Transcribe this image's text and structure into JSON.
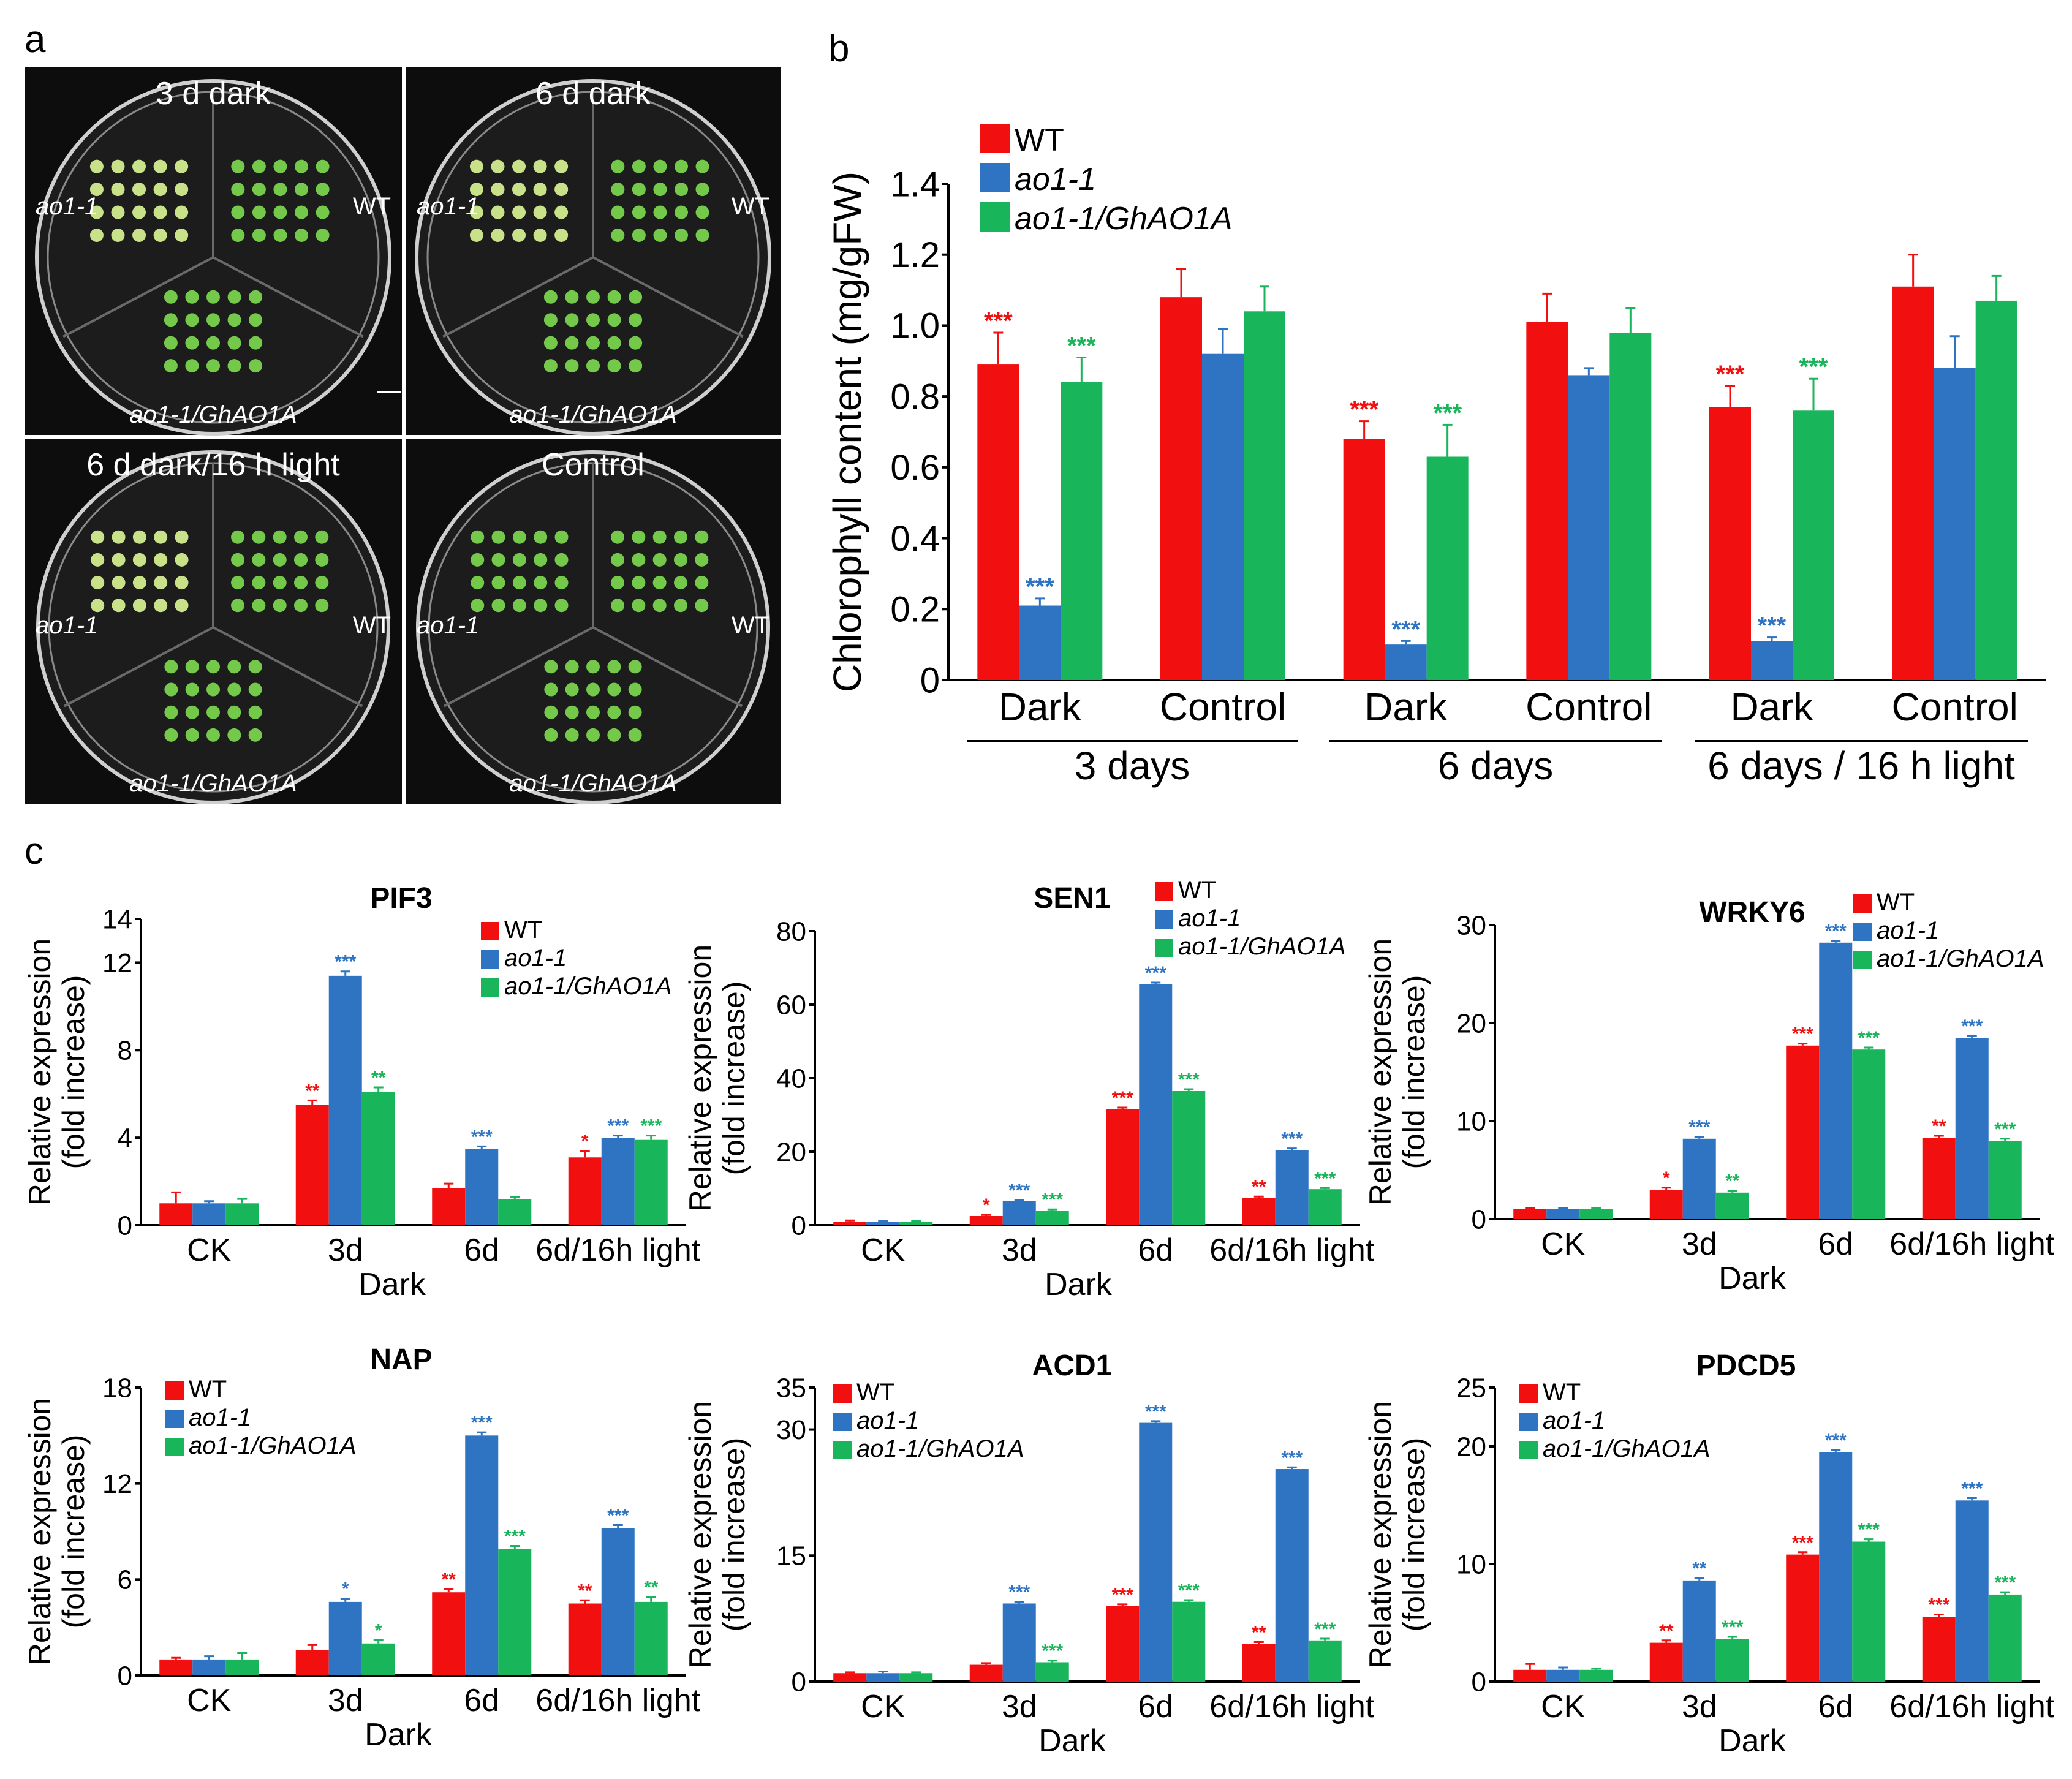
{
  "colors": {
    "wt": "#f20f0f",
    "mut": "#2f74c2",
    "comp": "#19b55a",
    "plate_bg": "#0d0d0d"
  },
  "panel_labels": {
    "a": "a",
    "b": "b",
    "c": "c"
  },
  "photos": {
    "plates": [
      {
        "title": "3 d dark",
        "left_label": "ao1-1",
        "right_label": "WT",
        "bottom_label": "ao1-1/GhAO1A"
      },
      {
        "title": "6 d dark",
        "left_label": "ao1-1",
        "right_label": "WT",
        "bottom_label": "ao1-1/GhAO1A"
      },
      {
        "title": "6 d dark/16 h light",
        "left_label": "ao1-1",
        "right_label": "WT",
        "bottom_label": "ao1-1/GhAO1A"
      },
      {
        "title": "Control",
        "left_label": "ao1-1",
        "right_label": "WT",
        "bottom_label": "ao1-1/GhAO1A"
      }
    ]
  },
  "legend": {
    "wt": "WT",
    "mut": "ao1-1",
    "comp": "ao1-1/GhAO1A"
  },
  "chart_data": [
    {
      "id": "b",
      "type": "bar",
      "title": "",
      "ylabel": "Chlorophyll content (mg/gFW)",
      "ylim": [
        0,
        1.4
      ],
      "yticks": [
        0,
        0.2,
        0.4,
        0.6,
        0.8,
        1.0,
        1.2,
        1.4
      ],
      "ytick_labels": [
        "0",
        "0.2",
        "0.4",
        "0.6",
        "0.8",
        "1.0",
        "1.2",
        "1.4"
      ],
      "categories": [
        "Dark",
        "Control",
        "Dark",
        "Control",
        "Dark",
        "Control"
      ],
      "groups": [
        "3 days",
        "6 days",
        "6 days / 16 h light"
      ],
      "series": [
        {
          "name": "WT",
          "values": [
            0.89,
            1.08,
            0.68,
            1.01,
            0.77,
            1.11
          ],
          "errors": [
            0.09,
            0.08,
            0.05,
            0.08,
            0.06,
            0.09
          ],
          "sig": [
            "***",
            "",
            "***",
            "",
            "***",
            ""
          ]
        },
        {
          "name": "ao1-1",
          "values": [
            0.21,
            0.92,
            0.1,
            0.86,
            0.11,
            0.88
          ],
          "errors": [
            0.02,
            0.07,
            0.01,
            0.02,
            0.01,
            0.09
          ],
          "sig": [
            "***",
            "",
            "***",
            "",
            "***",
            ""
          ]
        },
        {
          "name": "ao1-1/GhAO1A",
          "values": [
            0.84,
            1.04,
            0.63,
            0.98,
            0.76,
            1.07
          ],
          "errors": [
            0.07,
            0.07,
            0.09,
            0.07,
            0.09,
            0.07
          ],
          "sig": [
            "***",
            "",
            "***",
            "",
            "***",
            ""
          ]
        }
      ]
    },
    {
      "id": "c1",
      "type": "bar",
      "title": "PIF3",
      "ylabel": "Relative expression",
      "ylabel2": "(fold increase)",
      "xlabel": "Dark",
      "ylim": [
        0,
        14
      ],
      "yticks": [
        0,
        4,
        8,
        12,
        14
      ],
      "ytick_labels": [
        "0",
        "4",
        "8",
        "12",
        "14"
      ],
      "categories": [
        "CK",
        "3d",
        "6d",
        "6d/16h light"
      ],
      "series": [
        {
          "name": "WT",
          "values": [
            1.0,
            5.5,
            1.7,
            3.1
          ],
          "errors": [
            0.5,
            0.2,
            0.2,
            0.3
          ],
          "sig": [
            "",
            "**",
            "",
            "*"
          ]
        },
        {
          "name": "ao1-1",
          "values": [
            1.0,
            11.4,
            3.5,
            4.0
          ],
          "errors": [
            0.1,
            0.2,
            0.1,
            0.1
          ],
          "sig": [
            "",
            "***",
            "***",
            "***"
          ]
        },
        {
          "name": "ao1-1/GhAO1A",
          "values": [
            1.0,
            6.1,
            1.2,
            3.9
          ],
          "errors": [
            0.2,
            0.2,
            0.1,
            0.2
          ],
          "sig": [
            "",
            "**",
            "",
            "***"
          ]
        }
      ]
    },
    {
      "id": "c2",
      "type": "bar",
      "title": "SEN1",
      "ylabel": "Relative expression",
      "ylabel2": "(fold increase)",
      "xlabel": "Dark",
      "ylim": [
        0,
        80
      ],
      "yticks": [
        0,
        20,
        40,
        60,
        80
      ],
      "ytick_labels": [
        "0",
        "20",
        "40",
        "60",
        "80"
      ],
      "categories": [
        "CK",
        "3d",
        "6d",
        "6d/16h light"
      ],
      "series": [
        {
          "name": "WT",
          "values": [
            1.0,
            2.5,
            31.5,
            7.5
          ],
          "errors": [
            0.3,
            0.3,
            0.5,
            0.3
          ],
          "sig": [
            "",
            "*",
            "***",
            "**"
          ]
        },
        {
          "name": "ao1-1",
          "values": [
            1.0,
            6.5,
            65.5,
            20.5
          ],
          "errors": [
            0.2,
            0.3,
            0.5,
            0.4
          ],
          "sig": [
            "",
            "***",
            "***",
            "***"
          ]
        },
        {
          "name": "ao1-1/GhAO1A",
          "values": [
            1.0,
            4.0,
            36.5,
            9.8
          ],
          "errors": [
            0.2,
            0.3,
            0.5,
            0.3
          ],
          "sig": [
            "",
            "***",
            "***",
            "***"
          ]
        }
      ]
    },
    {
      "id": "c3",
      "type": "bar",
      "title": "WRKY6",
      "ylabel": "Relative expression",
      "ylabel2": "(fold increase)",
      "xlabel": "Dark",
      "ylim": [
        0,
        30
      ],
      "yticks": [
        0,
        10,
        20,
        30
      ],
      "ytick_labels": [
        "0",
        "10",
        "20",
        "30"
      ],
      "categories": [
        "CK",
        "3d",
        "6d",
        "6d/16h light"
      ],
      "series": [
        {
          "name": "WT",
          "values": [
            1.0,
            3.0,
            17.7,
            8.3
          ],
          "errors": [
            0.1,
            0.2,
            0.2,
            0.2
          ],
          "sig": [
            "",
            "*",
            "***",
            "**"
          ]
        },
        {
          "name": "ao1-1",
          "values": [
            1.0,
            8.2,
            28.2,
            18.5
          ],
          "errors": [
            0.1,
            0.2,
            0.2,
            0.2
          ],
          "sig": [
            "",
            "***",
            "***",
            "***"
          ]
        },
        {
          "name": "ao1-1/GhAO1A",
          "values": [
            1.0,
            2.7,
            17.3,
            8.0
          ],
          "errors": [
            0.1,
            0.2,
            0.2,
            0.2
          ],
          "sig": [
            "",
            "**",
            "***",
            "***"
          ]
        }
      ]
    },
    {
      "id": "c4",
      "type": "bar",
      "title": "NAP",
      "ylabel": "Relative expression",
      "ylabel2": "(fold increase)",
      "xlabel": "Dark",
      "ylim": [
        0,
        18
      ],
      "yticks": [
        0,
        6,
        12,
        18
      ],
      "ytick_labels": [
        "0",
        "6",
        "12",
        "18"
      ],
      "categories": [
        "CK",
        "3d",
        "6d",
        "6d/16h light"
      ],
      "series": [
        {
          "name": "WT",
          "values": [
            1.0,
            1.6,
            5.2,
            4.5
          ],
          "errors": [
            0.1,
            0.3,
            0.2,
            0.2
          ],
          "sig": [
            "",
            "",
            "**",
            "**"
          ]
        },
        {
          "name": "ao1-1",
          "values": [
            1.0,
            4.6,
            15.0,
            9.2
          ],
          "errors": [
            0.2,
            0.2,
            0.2,
            0.2
          ],
          "sig": [
            "",
            "*",
            "***",
            "***"
          ]
        },
        {
          "name": "ao1-1/GhAO1A",
          "values": [
            1.0,
            2.0,
            7.9,
            4.6
          ],
          "errors": [
            0.4,
            0.2,
            0.2,
            0.3
          ],
          "sig": [
            "",
            "*",
            "***",
            "**"
          ]
        }
      ]
    },
    {
      "id": "c5",
      "type": "bar",
      "title": "ACD1",
      "ylabel": "Relative expression",
      "ylabel2": "(fold increase)",
      "xlabel": "Dark",
      "ylim": [
        0,
        35
      ],
      "yticks": [
        0,
        15,
        30,
        35
      ],
      "ytick_labels": [
        "0",
        "15",
        "30",
        "35"
      ],
      "categories": [
        "CK",
        "3d",
        "6d",
        "6d/16h light"
      ],
      "series": [
        {
          "name": "WT",
          "values": [
            1.0,
            2.0,
            9.0,
            4.5
          ],
          "errors": [
            0.1,
            0.2,
            0.2,
            0.2
          ],
          "sig": [
            "",
            "",
            "***",
            "**"
          ]
        },
        {
          "name": "ao1-1",
          "values": [
            1.0,
            9.3,
            30.8,
            25.3
          ],
          "errors": [
            0.2,
            0.2,
            0.2,
            0.2
          ],
          "sig": [
            "",
            "***",
            "***",
            "***"
          ]
        },
        {
          "name": "ao1-1/GhAO1A",
          "values": [
            1.0,
            2.3,
            9.5,
            4.9
          ],
          "errors": [
            0.1,
            0.2,
            0.2,
            0.2
          ],
          "sig": [
            "",
            "***",
            "***",
            "***"
          ]
        }
      ]
    },
    {
      "id": "c6",
      "type": "bar",
      "title": "PDCD5",
      "ylabel": "Relative expression",
      "ylabel2": "(fold increase)",
      "xlabel": "Dark",
      "ylim": [
        0,
        25
      ],
      "yticks": [
        0,
        10,
        20,
        25
      ],
      "ytick_labels": [
        "0",
        "10",
        "20",
        "25"
      ],
      "categories": [
        "CK",
        "3d",
        "6d",
        "6d/16h light"
      ],
      "series": [
        {
          "name": "WT",
          "values": [
            1.0,
            3.3,
            10.8,
            5.5
          ],
          "errors": [
            0.5,
            0.2,
            0.2,
            0.2
          ],
          "sig": [
            "",
            "**",
            "***",
            "***"
          ]
        },
        {
          "name": "ao1-1",
          "values": [
            1.0,
            8.6,
            19.5,
            15.4
          ],
          "errors": [
            0.2,
            0.2,
            0.2,
            0.2
          ],
          "sig": [
            "",
            "**",
            "***",
            "***"
          ]
        },
        {
          "name": "ao1-1/GhAO1A",
          "values": [
            1.0,
            3.6,
            11.9,
            7.4
          ],
          "errors": [
            0.1,
            0.2,
            0.2,
            0.2
          ],
          "sig": [
            "",
            "***",
            "***",
            "***"
          ]
        }
      ]
    }
  ]
}
